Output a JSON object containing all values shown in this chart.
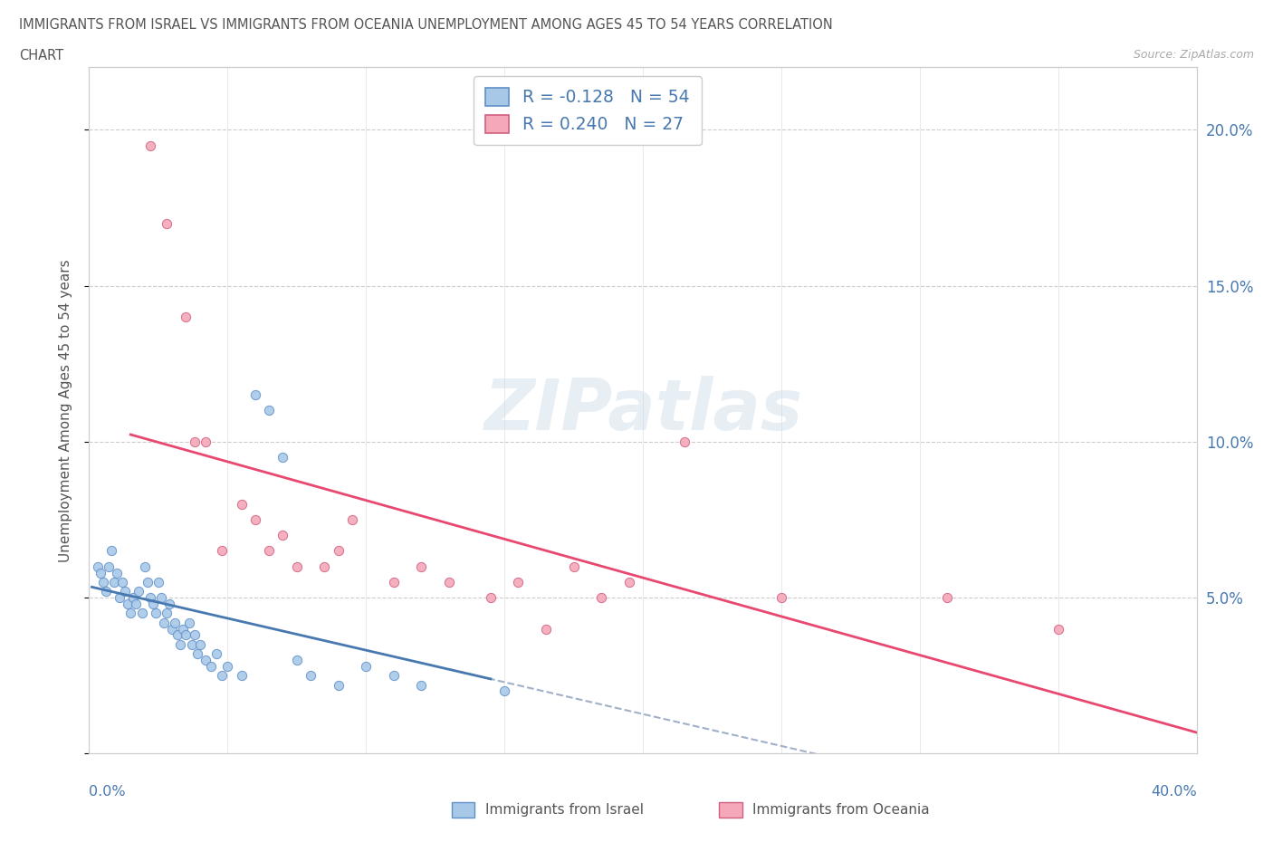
{
  "title_line1": "IMMIGRANTS FROM ISRAEL VS IMMIGRANTS FROM OCEANIA UNEMPLOYMENT AMONG AGES 45 TO 54 YEARS CORRELATION",
  "title_line2": "CHART",
  "source_text": "Source: ZipAtlas.com",
  "ylabel": "Unemployment Among Ages 45 to 54 years",
  "R_israel": -0.128,
  "N_israel": 54,
  "R_oceania": 0.24,
  "N_oceania": 27,
  "color_israel": "#a8c8e8",
  "color_oceania": "#f4a8b8",
  "color_israel_line": "#4878b0",
  "color_oceania_line": "#e84870",
  "color_dashed": "#a0b0c8",
  "color_blue_text": "#4878b0",
  "xlim": [
    0.0,
    0.4
  ],
  "ylim": [
    0.0,
    0.22
  ],
  "yticks": [
    0.0,
    0.05,
    0.1,
    0.15,
    0.2
  ],
  "ytick_labels": [
    "",
    "5.0%",
    "10.0%",
    "15.0%",
    "20.0%"
  ],
  "israel_x": [
    0.003,
    0.004,
    0.005,
    0.006,
    0.007,
    0.008,
    0.009,
    0.01,
    0.011,
    0.012,
    0.013,
    0.014,
    0.015,
    0.016,
    0.017,
    0.018,
    0.019,
    0.02,
    0.021,
    0.022,
    0.023,
    0.024,
    0.025,
    0.026,
    0.027,
    0.028,
    0.029,
    0.03,
    0.031,
    0.032,
    0.033,
    0.034,
    0.035,
    0.036,
    0.037,
    0.038,
    0.039,
    0.04,
    0.042,
    0.044,
    0.046,
    0.048,
    0.05,
    0.055,
    0.06,
    0.065,
    0.07,
    0.075,
    0.08,
    0.09,
    0.1,
    0.11,
    0.12,
    0.15
  ],
  "israel_y": [
    0.06,
    0.058,
    0.055,
    0.052,
    0.06,
    0.065,
    0.055,
    0.058,
    0.05,
    0.055,
    0.052,
    0.048,
    0.045,
    0.05,
    0.048,
    0.052,
    0.045,
    0.06,
    0.055,
    0.05,
    0.048,
    0.045,
    0.055,
    0.05,
    0.042,
    0.045,
    0.048,
    0.04,
    0.042,
    0.038,
    0.035,
    0.04,
    0.038,
    0.042,
    0.035,
    0.038,
    0.032,
    0.035,
    0.03,
    0.028,
    0.032,
    0.025,
    0.028,
    0.025,
    0.115,
    0.11,
    0.095,
    0.03,
    0.025,
    0.022,
    0.028,
    0.025,
    0.022,
    0.02
  ],
  "oceania_x": [
    0.022,
    0.028,
    0.035,
    0.038,
    0.042,
    0.048,
    0.055,
    0.06,
    0.065,
    0.07,
    0.075,
    0.085,
    0.09,
    0.095,
    0.11,
    0.12,
    0.13,
    0.145,
    0.155,
    0.165,
    0.175,
    0.185,
    0.195,
    0.215,
    0.25,
    0.31,
    0.35
  ],
  "oceania_y": [
    0.195,
    0.17,
    0.14,
    0.1,
    0.1,
    0.065,
    0.08,
    0.075,
    0.065,
    0.07,
    0.06,
    0.06,
    0.065,
    0.075,
    0.055,
    0.06,
    0.055,
    0.05,
    0.055,
    0.04,
    0.06,
    0.05,
    0.055,
    0.1,
    0.05,
    0.05,
    0.04
  ],
  "legend_israel": "Immigrants from Israel",
  "legend_oceania": "Immigrants from Oceania",
  "watermark_text": "ZIPatlas"
}
